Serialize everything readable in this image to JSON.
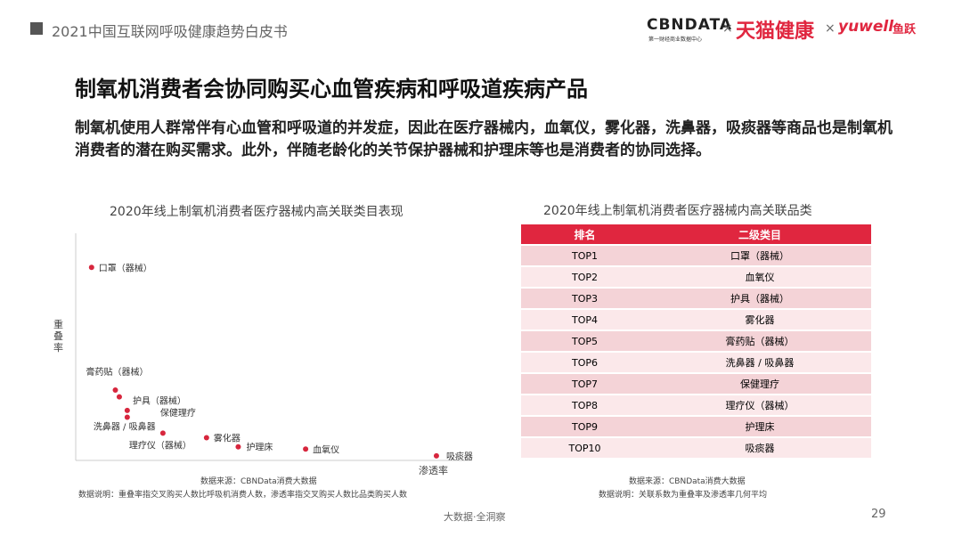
{
  "header": {
    "title": "2021中国互联网呼吸健康趋势白皮书",
    "brand1": "CBNDATA",
    "brand1_sub": "第一财经商业数据中心",
    "separator": "×",
    "brand2": "天猫健康",
    "brand3": "yuwell",
    "brand3_cn": "鱼跃"
  },
  "slide_title": "制氧机消费者会协同购买心血管疾病和呼吸道疾病产品",
  "body": "制氧机使用人群常伴有心血管和呼吸道的并发症，因此在医疗器械内，血氧仪，雾化器，洗鼻器，吸痰器等商品也是制氧机消费者的潜在购买需求。此外，伴随老龄化的关节保护器械和护理床等也是消费者的协同选择。",
  "chart_data": {
    "type": "scatter",
    "title": "2020年线上制氧机消费者医疗器械内高关联类目表现",
    "x_label": "渗透率",
    "y_label": "重叠率",
    "categories": [
      "口罩（器械）",
      "膏药贴（器械）",
      "护具（器械）",
      "保健理疗",
      "洗鼻器 / 吸鼻器",
      "理疗仪（器械）",
      "雾化器",
      "护理床",
      "血氧仪",
      "吸痰器"
    ],
    "x": [
      4,
      10,
      11,
      13,
      13,
      22,
      33,
      41,
      58,
      91
    ],
    "values": [
      85,
      31,
      28,
      22,
      19,
      12,
      10,
      6,
      5,
      2
    ],
    "xlim": [
      0,
      100
    ],
    "ylim": [
      0,
      100
    ],
    "color": "#d7263d",
    "source": "数据来源：CBNData消费大数据",
    "note": "数据说明：重叠率指交叉购买人数比呼吸机消费人数，渗透率指交叉购买人数比品类购买人数"
  },
  "table": {
    "title": "2020年线上制氧机消费者医疗器械内高关联品类",
    "columns": [
      "排名",
      "二级类目"
    ],
    "rows": [
      [
        "TOP1",
        "口罩（器械）"
      ],
      [
        "TOP2",
        "血氧仪"
      ],
      [
        "TOP3",
        "护具（器械）"
      ],
      [
        "TOP4",
        "雾化器"
      ],
      [
        "TOP5",
        "膏药贴（器械）"
      ],
      [
        "TOP6",
        "洗鼻器 / 吸鼻器"
      ],
      [
        "TOP7",
        "保健理疗"
      ],
      [
        "TOP8",
        "理疗仪（器械）"
      ],
      [
        "TOP9",
        "护理床"
      ],
      [
        "TOP10",
        "吸痰器"
      ]
    ],
    "source": "数据来源：CBNData消费大数据",
    "note": "数据说明：关联系数为重叠率及渗透率几何平均"
  },
  "footer": {
    "tagline": "大数据·全洞察",
    "page": "29"
  }
}
